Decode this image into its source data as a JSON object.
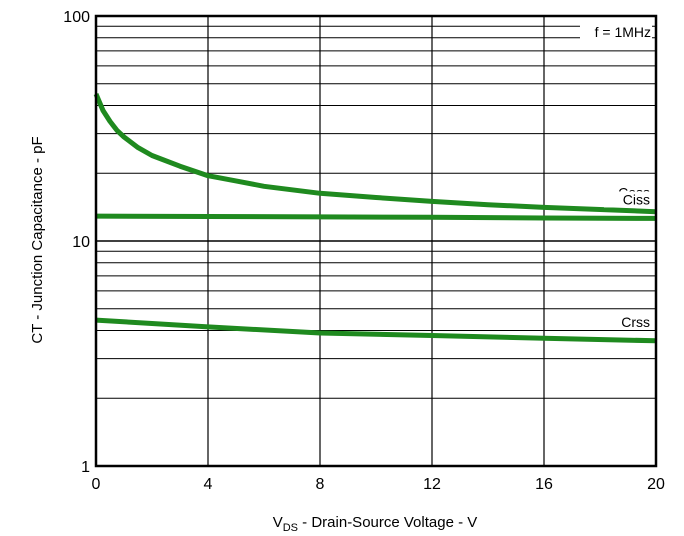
{
  "chart_data": {
    "type": "line",
    "title": "",
    "xlabel_main": "V",
    "xlabel_sub": "DS",
    "xlabel_rest": " - Drain-Source Voltage - V",
    "ylabel": "CT - Junction Capacitance - pF",
    "annotation": "f = 1MHz",
    "x_scale": "linear",
    "y_scale": "log",
    "xlim": [
      0,
      20
    ],
    "ylim": [
      1,
      100
    ],
    "x_ticks": [
      0,
      4,
      8,
      12,
      16,
      20
    ],
    "x_tick_labels": [
      "0",
      "4",
      "8",
      "12",
      "16",
      "20"
    ],
    "y_ticks": [
      1,
      10,
      100
    ],
    "y_tick_labels": [
      "1",
      "10",
      "100"
    ],
    "grid": true,
    "colors": {
      "series": "#1f8a1f",
      "grid": "#000000"
    },
    "series": [
      {
        "name": "Coss",
        "x": [
          0,
          0.25,
          0.5,
          0.75,
          1,
          1.5,
          2,
          3,
          4,
          5,
          6,
          8,
          10,
          12,
          14,
          16,
          18,
          20
        ],
        "y": [
          45,
          38,
          34,
          31,
          29,
          26,
          24,
          21.5,
          19.5,
          18.5,
          17.5,
          16.3,
          15.6,
          15.0,
          14.5,
          14.1,
          13.8,
          13.5
        ]
      },
      {
        "name": "Ciss",
        "x": [
          0,
          4,
          8,
          12,
          16,
          20
        ],
        "y": [
          12.9,
          12.85,
          12.8,
          12.75,
          12.65,
          12.6
        ]
      },
      {
        "name": "Crss",
        "x": [
          0,
          2,
          4,
          8,
          12,
          16,
          20
        ],
        "y": [
          4.45,
          4.3,
          4.15,
          3.9,
          3.8,
          3.7,
          3.6
        ]
      }
    ]
  }
}
